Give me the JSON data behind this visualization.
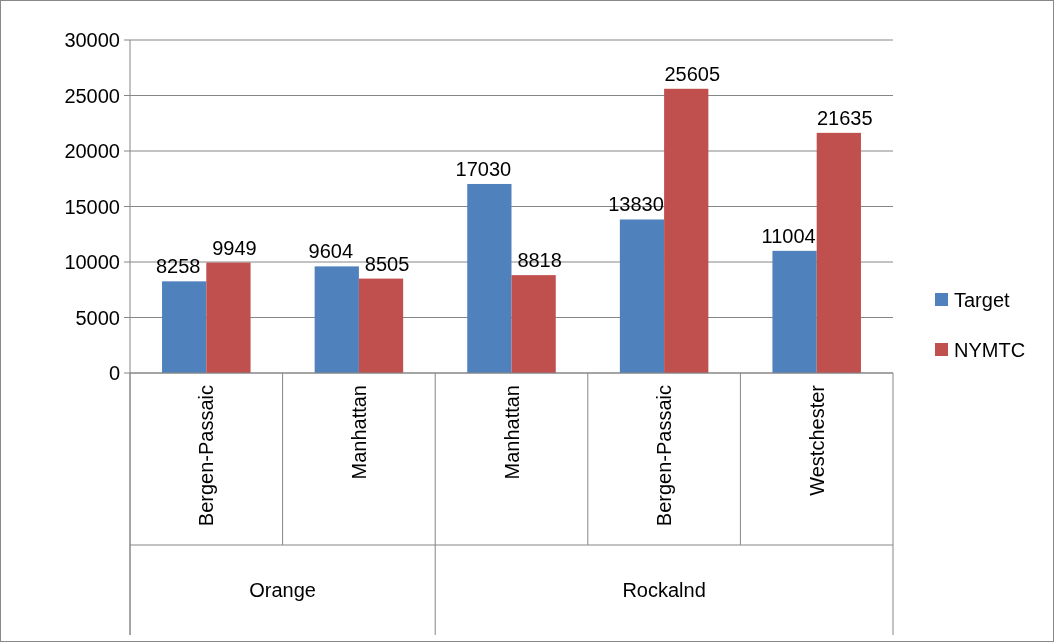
{
  "chart_data": {
    "type": "bar",
    "categories": [
      "Bergen-Passaic",
      "Manhattan",
      "Manhattan",
      "Bergen-Passaic",
      "Westchester"
    ],
    "series": [
      {
        "name": "Target",
        "color": "#4f81bd",
        "values": [
          8258,
          9604,
          17030,
          13830,
          11004
        ]
      },
      {
        "name": "NYMTC",
        "color": "#c0504d",
        "values": [
          9949,
          8505,
          8818,
          25605,
          21635
        ]
      }
    ],
    "annotations": [
      "Orange",
      "Rockalnd"
    ],
    "ylim": [
      0,
      30000
    ],
    "yticks": [
      0,
      5000,
      10000,
      15000,
      20000,
      25000,
      30000
    ],
    "grid": "y",
    "legend": "right",
    "data_labels": true
  }
}
